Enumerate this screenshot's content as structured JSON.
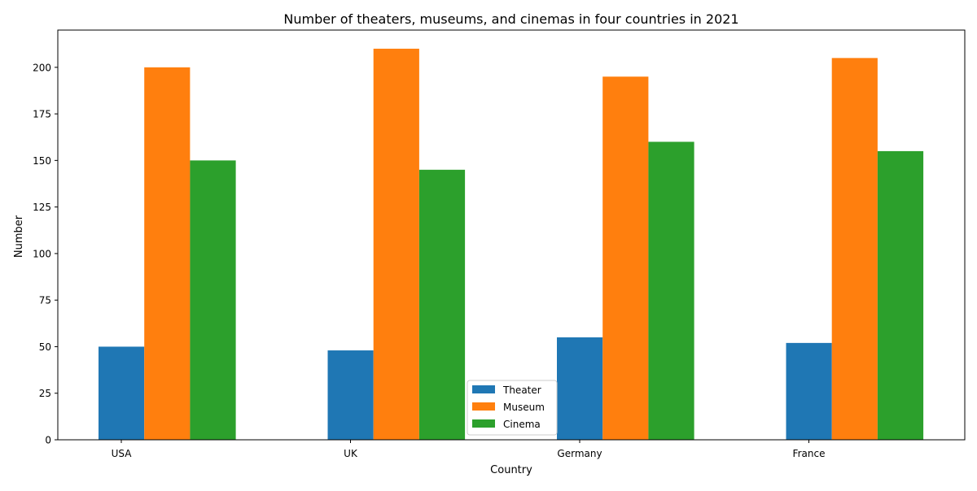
{
  "chart_data": {
    "type": "bar",
    "title": "Number of theaters, museums, and cinemas in four countries in 2021",
    "xlabel": "Country",
    "ylabel": "Number",
    "categories": [
      "USA",
      "UK",
      "Germany",
      "France"
    ],
    "series": [
      {
        "name": "Theater",
        "color": "#1f77b4",
        "values": [
          50,
          48,
          55,
          52
        ]
      },
      {
        "name": "Museum",
        "color": "#ff7f0e",
        "values": [
          200,
          210,
          195,
          205
        ]
      },
      {
        "name": "Cinema",
        "color": "#2ca02c",
        "values": [
          150,
          145,
          160,
          155
        ]
      }
    ],
    "ylim": [
      0,
      220
    ],
    "yticks": [
      0,
      25,
      50,
      75,
      100,
      125,
      150,
      175,
      200
    ],
    "grid": false,
    "legend_position": "bottom-center"
  }
}
